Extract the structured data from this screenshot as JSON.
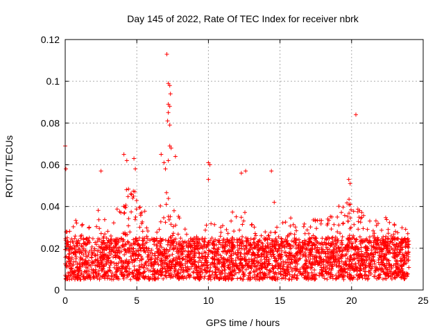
{
  "chart_data": {
    "type": "scatter",
    "title": "Day 145 of 2022, Rate Of TEC Index for receiver nbrk",
    "xlabel": "GPS time / hours",
    "ylabel": "ROTI / TECUs",
    "xlim": [
      0,
      25
    ],
    "ylim": [
      0,
      0.12
    ],
    "x_ticks": [
      0,
      5,
      10,
      15,
      20,
      25
    ],
    "x_tick_labels": [
      "0",
      "5",
      "10",
      "15",
      "20",
      "25"
    ],
    "y_ticks": [
      0,
      0.02,
      0.04,
      0.06,
      0.08,
      0.1,
      0.12
    ],
    "y_tick_labels": [
      "0",
      "0.02",
      "0.04",
      "0.06",
      "0.08",
      "0.1",
      "0.12"
    ],
    "grid": true,
    "marker": "+",
    "color": "#ff0000",
    "data_range_hours": [
      0,
      24
    ],
    "typical_band": [
      0.005,
      0.025
    ],
    "outliers": [
      {
        "x": 0.0,
        "y": 0.069
      },
      {
        "x": 0.05,
        "y": 0.058
      },
      {
        "x": 2.5,
        "y": 0.057
      },
      {
        "x": 4.1,
        "y": 0.065
      },
      {
        "x": 4.3,
        "y": 0.062
      },
      {
        "x": 4.8,
        "y": 0.063
      },
      {
        "x": 4.9,
        "y": 0.058
      },
      {
        "x": 6.7,
        "y": 0.065
      },
      {
        "x": 6.9,
        "y": 0.061
      },
      {
        "x": 7.1,
        "y": 0.113
      },
      {
        "x": 7.2,
        "y": 0.099
      },
      {
        "x": 7.3,
        "y": 0.098
      },
      {
        "x": 7.35,
        "y": 0.094
      },
      {
        "x": 7.2,
        "y": 0.089
      },
      {
        "x": 7.3,
        "y": 0.088
      },
      {
        "x": 7.2,
        "y": 0.085
      },
      {
        "x": 7.15,
        "y": 0.081
      },
      {
        "x": 7.3,
        "y": 0.079
      },
      {
        "x": 7.3,
        "y": 0.069
      },
      {
        "x": 7.4,
        "y": 0.068
      },
      {
        "x": 7.2,
        "y": 0.062
      },
      {
        "x": 7.0,
        "y": 0.058
      },
      {
        "x": 7.7,
        "y": 0.064
      },
      {
        "x": 10.0,
        "y": 0.061
      },
      {
        "x": 10.1,
        "y": 0.06
      },
      {
        "x": 10.0,
        "y": 0.053
      },
      {
        "x": 12.3,
        "y": 0.056
      },
      {
        "x": 12.6,
        "y": 0.057
      },
      {
        "x": 14.4,
        "y": 0.057
      },
      {
        "x": 14.6,
        "y": 0.042
      },
      {
        "x": 19.8,
        "y": 0.053
      },
      {
        "x": 19.9,
        "y": 0.051
      },
      {
        "x": 20.3,
        "y": 0.084
      }
    ],
    "activity_envelope": [
      {
        "x": 0,
        "y": 0.035
      },
      {
        "x": 1,
        "y": 0.033
      },
      {
        "x": 2,
        "y": 0.032
      },
      {
        "x": 2.5,
        "y": 0.05
      },
      {
        "x": 3,
        "y": 0.028
      },
      {
        "x": 4,
        "y": 0.05
      },
      {
        "x": 5,
        "y": 0.05
      },
      {
        "x": 6,
        "y": 0.03
      },
      {
        "x": 7,
        "y": 0.048
      },
      {
        "x": 8,
        "y": 0.035
      },
      {
        "x": 9,
        "y": 0.028
      },
      {
        "x": 10,
        "y": 0.033
      },
      {
        "x": 11,
        "y": 0.032
      },
      {
        "x": 12,
        "y": 0.04
      },
      {
        "x": 13,
        "y": 0.035
      },
      {
        "x": 14,
        "y": 0.034
      },
      {
        "x": 15,
        "y": 0.032
      },
      {
        "x": 16,
        "y": 0.036
      },
      {
        "x": 17,
        "y": 0.035
      },
      {
        "x": 18,
        "y": 0.034
      },
      {
        "x": 19,
        "y": 0.04
      },
      {
        "x": 20,
        "y": 0.045
      },
      {
        "x": 21,
        "y": 0.035
      },
      {
        "x": 22,
        "y": 0.036
      },
      {
        "x": 23,
        "y": 0.033
      },
      {
        "x": 24,
        "y": 0.028
      }
    ]
  }
}
